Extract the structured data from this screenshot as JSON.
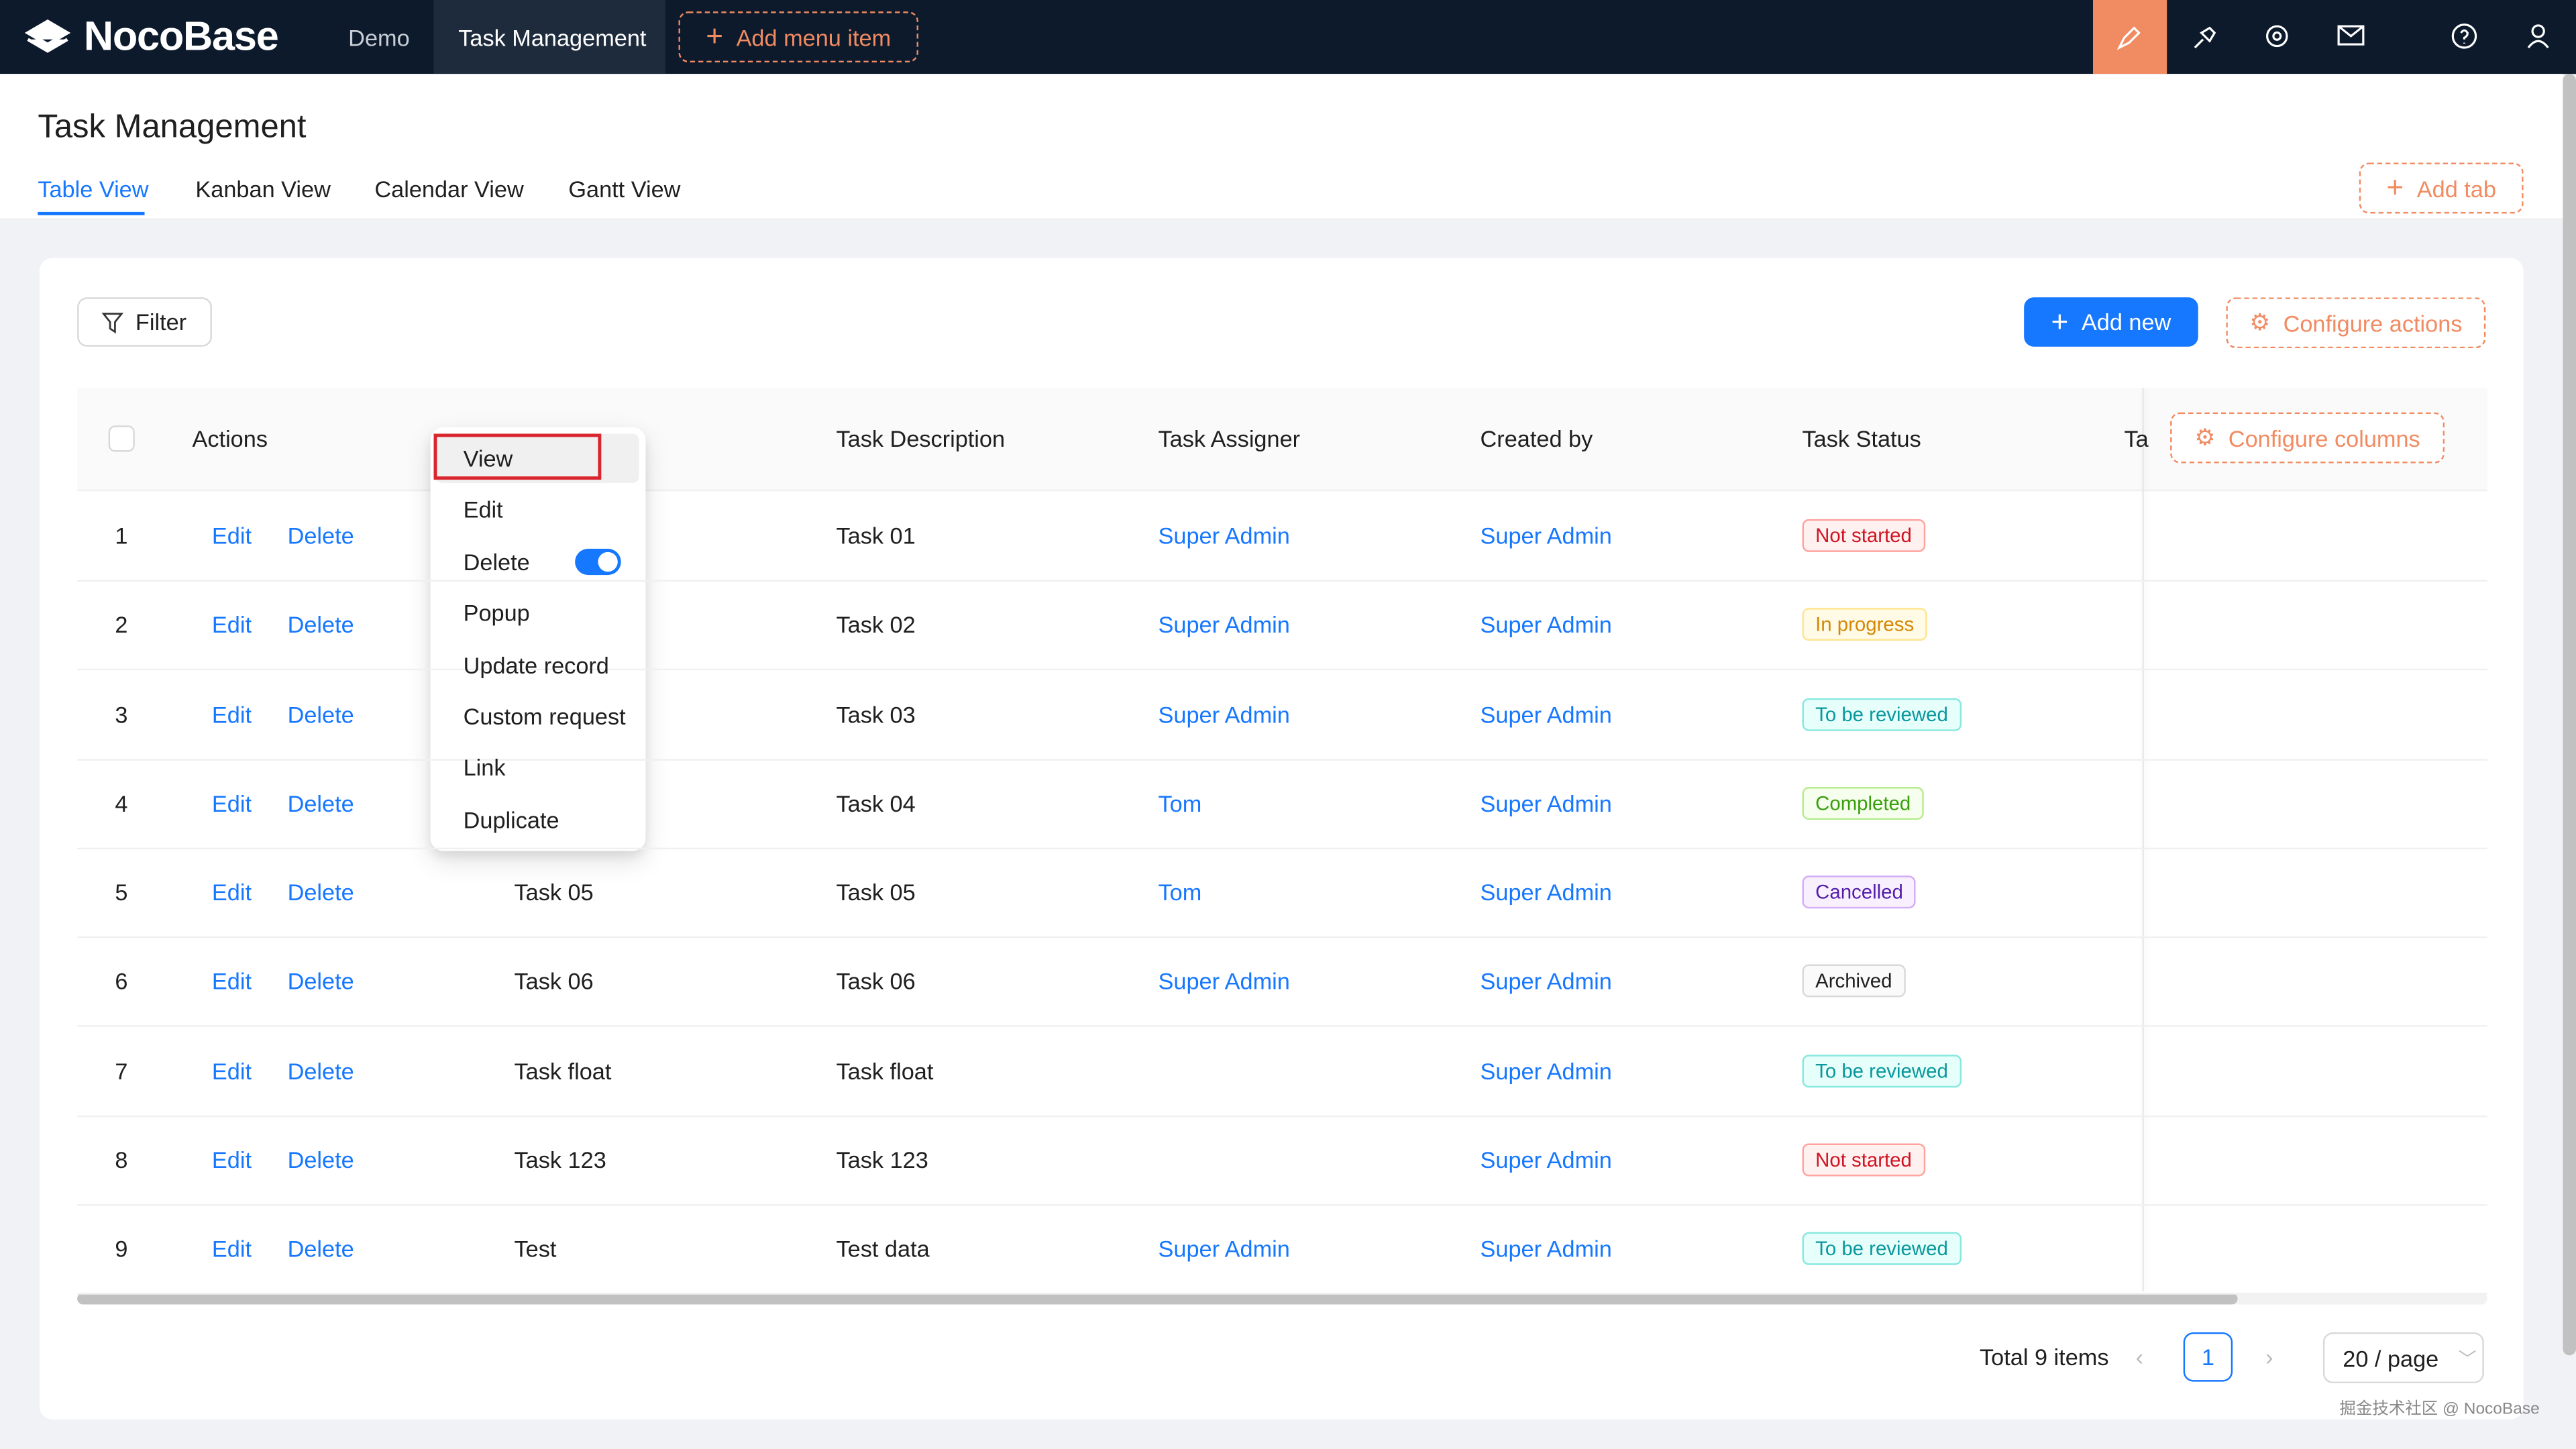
{
  "nav": {
    "logo": "NocoBase",
    "items": [
      "Demo",
      "Task Management"
    ],
    "add_menu_item": "Add menu item"
  },
  "page": {
    "title": "Task Management",
    "tabs": [
      "Table View",
      "Kanban View",
      "Calendar View",
      "Gantt View"
    ],
    "add_tab": "Add tab"
  },
  "toolbar": {
    "filter": "Filter",
    "add_new": "Add new",
    "configure_actions": "Configure actions"
  },
  "table": {
    "columns": [
      "Actions",
      "Task Description",
      "Task Assigner",
      "Created by",
      "Task Status",
      "Ta"
    ],
    "configure_columns": "Configure columns",
    "row_actions": [
      "Edit",
      "Delete"
    ],
    "rows": [
      {
        "index": 1,
        "title": null,
        "description": "Task 01",
        "assigner": "Super Admin",
        "created_by": "Super Admin",
        "status": "Not started",
        "status_color": "red"
      },
      {
        "index": 2,
        "title": null,
        "description": "Task 02",
        "assigner": "Super Admin",
        "created_by": "Super Admin",
        "status": "In progress",
        "status_color": "gold"
      },
      {
        "index": 3,
        "title": null,
        "description": "Task 03",
        "assigner": "Super Admin",
        "created_by": "Super Admin",
        "status": "To be reviewed",
        "status_color": "cyan"
      },
      {
        "index": 4,
        "title": null,
        "description": "Task 04",
        "assigner": "Tom",
        "created_by": "Super Admin",
        "status": "Completed",
        "status_color": "green"
      },
      {
        "index": 5,
        "title": "Task 05",
        "description": "Task 05",
        "assigner": "Tom",
        "created_by": "Super Admin",
        "status": "Cancelled",
        "status_color": "purple"
      },
      {
        "index": 6,
        "title": "Task 06",
        "description": "Task 06",
        "assigner": "Super Admin",
        "created_by": "Super Admin",
        "status": "Archived",
        "status_color": "default"
      },
      {
        "index": 7,
        "title": "Task float",
        "description": "Task float",
        "assigner": null,
        "created_by": "Super Admin",
        "status": "To be reviewed",
        "status_color": "cyan"
      },
      {
        "index": 8,
        "title": "Task 123",
        "description": "Task 123",
        "assigner": null,
        "created_by": "Super Admin",
        "status": "Not started",
        "status_color": "red"
      },
      {
        "index": 9,
        "title": "Test",
        "description": "Test data",
        "assigner": "Super Admin",
        "created_by": "Super Admin",
        "status": "To be reviewed",
        "status_color": "cyan"
      }
    ]
  },
  "menu": {
    "items": [
      "View",
      "Edit",
      "Delete",
      "Popup",
      "Update record",
      "Custom request",
      "Link",
      "Duplicate"
    ]
  },
  "pagination": {
    "total": "Total 9 items",
    "page": "1",
    "page_size": "20 / page"
  },
  "watermark": "掘金技术社区 @ NocoBase"
}
